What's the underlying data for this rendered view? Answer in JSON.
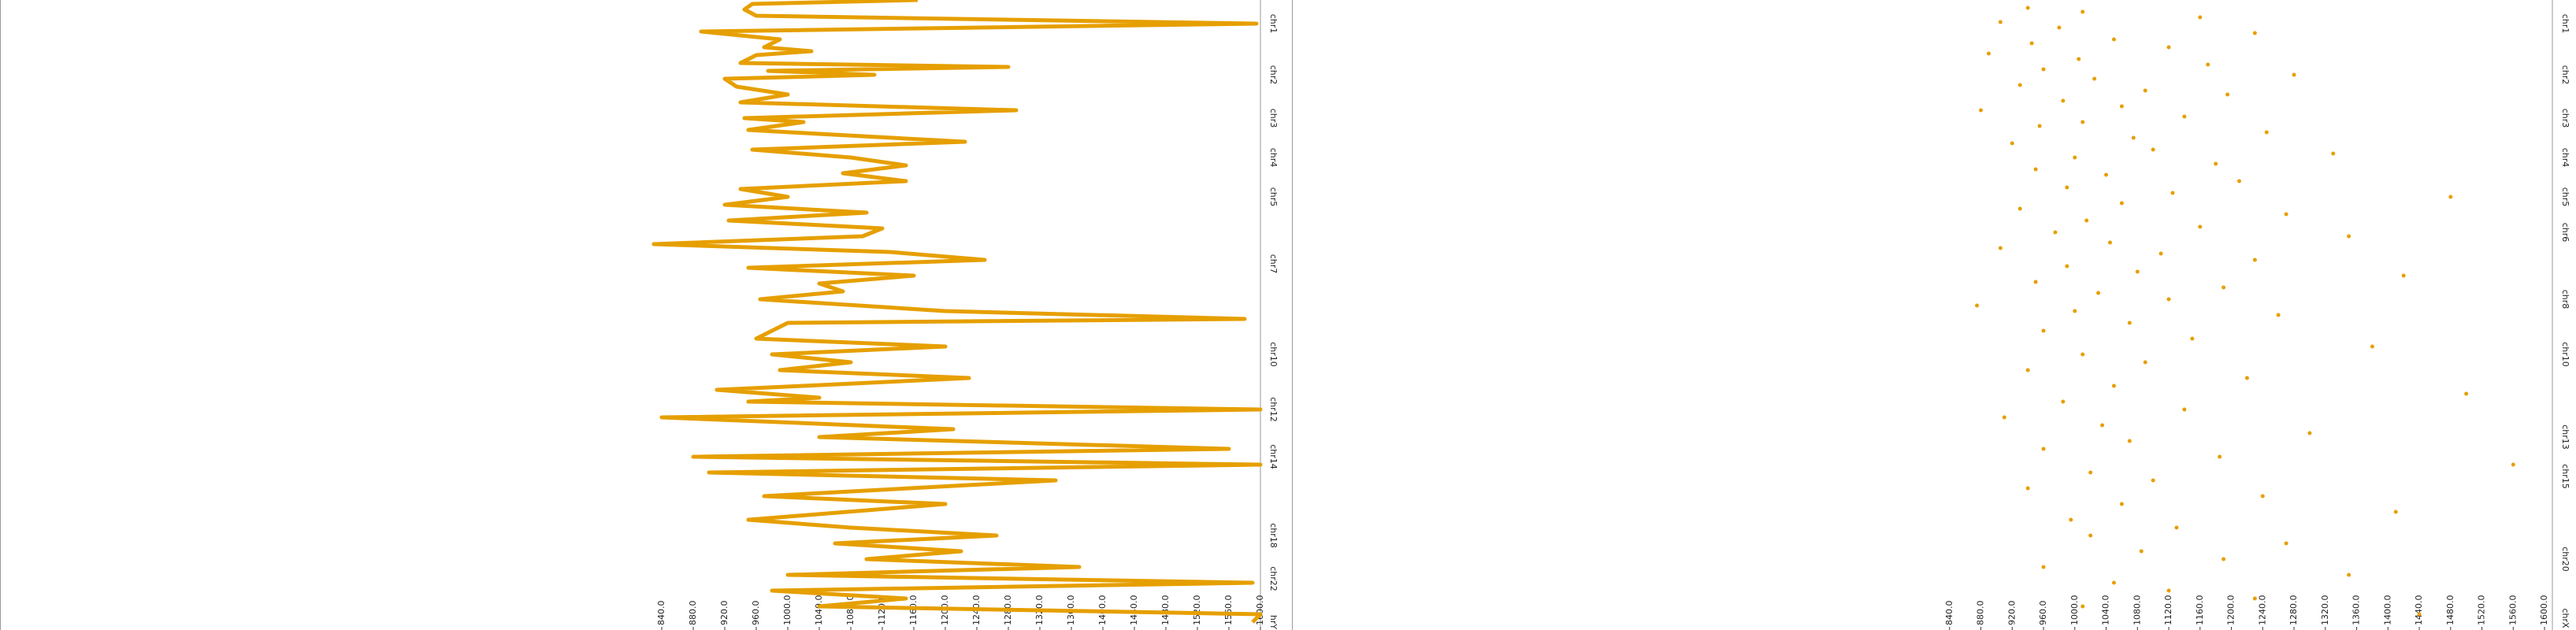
{
  "chart_data": [
    {
      "type": "line",
      "color": "#e69f00",
      "xlim": [
        0,
        1600
      ],
      "xticks": [
        {
          "value": 840,
          "label": "840.0"
        },
        {
          "value": 880,
          "label": "880.0"
        },
        {
          "value": 920,
          "label": "920.0"
        },
        {
          "value": 960,
          "label": "960.0"
        },
        {
          "value": 1000,
          "label": "1000.0"
        },
        {
          "value": 1040,
          "label": "1040.0"
        },
        {
          "value": 1080,
          "label": "1080.0"
        },
        {
          "value": 1120,
          "label": "1120.0"
        },
        {
          "value": 1160,
          "label": "1160.0"
        },
        {
          "value": 1200,
          "label": "1200.0"
        },
        {
          "value": 1240,
          "label": "1240.0"
        },
        {
          "value": 1280,
          "label": "1280.0"
        },
        {
          "value": 1320,
          "label": "1320.0"
        },
        {
          "value": 1360,
          "label": "1360.0"
        },
        {
          "value": 1400,
          "label": "1400.0"
        },
        {
          "value": 1440,
          "label": "1440.0"
        },
        {
          "value": 1480,
          "label": "1480.0"
        },
        {
          "value": 1520,
          "label": "1520.0"
        },
        {
          "value": 1560,
          "label": "1560.0"
        },
        {
          "value": 1600,
          "label": "1600.0"
        }
      ],
      "ylim": [
        0,
        800
      ],
      "chromosomes": [
        "chr1",
        "chr2",
        "chr3",
        "chr4",
        "chr5",
        "chr7",
        "chr10",
        "chr12",
        "chr14",
        "chr18",
        "chr22",
        "hrY"
      ],
      "chromosome_positions": [
        30,
        95,
        150,
        200,
        250,
        335,
        450,
        520,
        580,
        680,
        735,
        790
      ],
      "positions": [
        0,
        5,
        12,
        20,
        30,
        40,
        50,
        60,
        65,
        70,
        80,
        85,
        90,
        95,
        100,
        110,
        120,
        130,
        140,
        150,
        155,
        165,
        170,
        180,
        190,
        200,
        210,
        220,
        230,
        240,
        250,
        260,
        270,
        280,
        290,
        300,
        310,
        320,
        330,
        340,
        350,
        360,
        370,
        380,
        395,
        405,
        410,
        430,
        440,
        450,
        460,
        470,
        480,
        490,
        495,
        505,
        510,
        520,
        530,
        545,
        555,
        570,
        580,
        590,
        600,
        610,
        630,
        640,
        660,
        670,
        680,
        690,
        700,
        710,
        720,
        730,
        740,
        750,
        760,
        770,
        780,
        790
      ],
      "values": [
        1165,
        955,
        945,
        960,
        1595,
        890,
        990,
        970,
        1030,
        960,
        940,
        1280,
        975,
        1110,
        920,
        935,
        1000,
        940,
        1290,
        945,
        1020,
        950,
        1040,
        1225,
        955,
        1080,
        1150,
        1070,
        1150,
        940,
        1000,
        920,
        1100,
        925,
        1120,
        1095,
        830,
        1130,
        1250,
        950,
        1160,
        1040,
        1070,
        965,
        1200,
        1580,
        1000,
        960,
        1200,
        980,
        1080,
        990,
        1230,
        1020,
        910,
        1040,
        950,
        1600,
        840,
        1210,
        1040,
        1560,
        880,
        1600,
        900,
        1340,
        970,
        1200,
        950,
        1080,
        1265,
        1060,
        1220,
        1100,
        1370,
        1000,
        1590,
        980,
        1150,
        1040,
        1600,
        1590
      ]
    },
    {
      "type": "scatter",
      "color": "#e69f00",
      "xlim": [
        0,
        1610
      ],
      "xticks": [
        {
          "value": 840,
          "label": "840.0"
        },
        {
          "value": 880,
          "label": "880.0"
        },
        {
          "value": 920,
          "label": "920.0"
        },
        {
          "value": 960,
          "label": "960.0"
        },
        {
          "value": 1000,
          "label": "1000.0"
        },
        {
          "value": 1040,
          "label": "1040.0"
        },
        {
          "value": 1080,
          "label": "1080.0"
        },
        {
          "value": 1120,
          "label": "1120.0"
        },
        {
          "value": 1160,
          "label": "1160.0"
        },
        {
          "value": 1200,
          "label": "1200.0"
        },
        {
          "value": 1240,
          "label": "1240.0"
        },
        {
          "value": 1280,
          "label": "1280.0"
        },
        {
          "value": 1320,
          "label": "1320.0"
        },
        {
          "value": 1360,
          "label": "1360.0"
        },
        {
          "value": 1400,
          "label": "1400.0"
        },
        {
          "value": 1440,
          "label": "1440.0"
        },
        {
          "value": 1480,
          "label": "1480.0"
        },
        {
          "value": 1520,
          "label": "1520.0"
        },
        {
          "value": 1560,
          "label": "1560.0"
        },
        {
          "value": 1600,
          "label": "1600.0"
        }
      ],
      "ylim": [
        0,
        800
      ],
      "chromosomes": [
        "chr1",
        "chr2",
        "chr3",
        "chr4",
        "chr5",
        "chr6",
        "chr8",
        "chr10",
        "chr13",
        "chr15",
        "chr20",
        "chrX"
      ],
      "chromosome_positions": [
        30,
        95,
        150,
        200,
        250,
        295,
        380,
        450,
        555,
        605,
        710,
        785
      ],
      "positions": [
        10,
        15,
        22,
        28,
        35,
        42,
        50,
        55,
        60,
        68,
        75,
        82,
        88,
        95,
        100,
        108,
        115,
        120,
        128,
        135,
        140,
        148,
        155,
        160,
        168,
        175,
        182,
        190,
        195,
        200,
        208,
        215,
        222,
        230,
        238,
        245,
        250,
        258,
        265,
        272,
        280,
        288,
        295,
        300,
        308,
        315,
        322,
        330,
        338,
        345,
        350,
        358,
        365,
        372,
        380,
        388,
        395,
        400,
        410,
        420,
        430,
        440,
        450,
        460,
        470,
        480,
        490,
        500,
        510,
        520,
        530,
        540,
        550,
        560,
        570,
        580,
        590,
        600,
        610,
        620,
        630,
        640,
        650,
        660,
        670,
        680,
        690,
        700,
        710,
        720,
        730,
        740,
        750,
        760,
        770,
        780
      ],
      "values": [
        940,
        1010,
        1160,
        905,
        980,
        1230,
        1050,
        945,
        1120,
        890,
        1005,
        1170,
        960,
        1280,
        1025,
        930,
        1090,
        1195,
        985,
        1060,
        880,
        1140,
        1010,
        955,
        1245,
        1075,
        920,
        1100,
        1330,
        1000,
        1180,
        950,
        1040,
        1210,
        990,
        1125,
        1480,
        1060,
        930,
        1270,
        1015,
        1160,
        975,
        1350,
        1045,
        905,
        1110,
        1230,
        990,
        1080,
        1420,
        950,
        1190,
        1030,
        1120,
        875,
        1000,
        1260,
        1070,
        960,
        1150,
        1380,
        1010,
        1090,
        940,
        1220,
        1050,
        1500,
        985,
        1140,
        910,
        1035,
        1300,
        1070,
        960,
        1185,
        1560,
        1020,
        1100,
        940,
        1240,
        1060,
        1410,
        995,
        1130,
        1020,
        1270,
        1085,
        1190,
        960,
        1350,
        1050,
        1120,
        1230,
        1010,
        1440
      ]
    }
  ]
}
